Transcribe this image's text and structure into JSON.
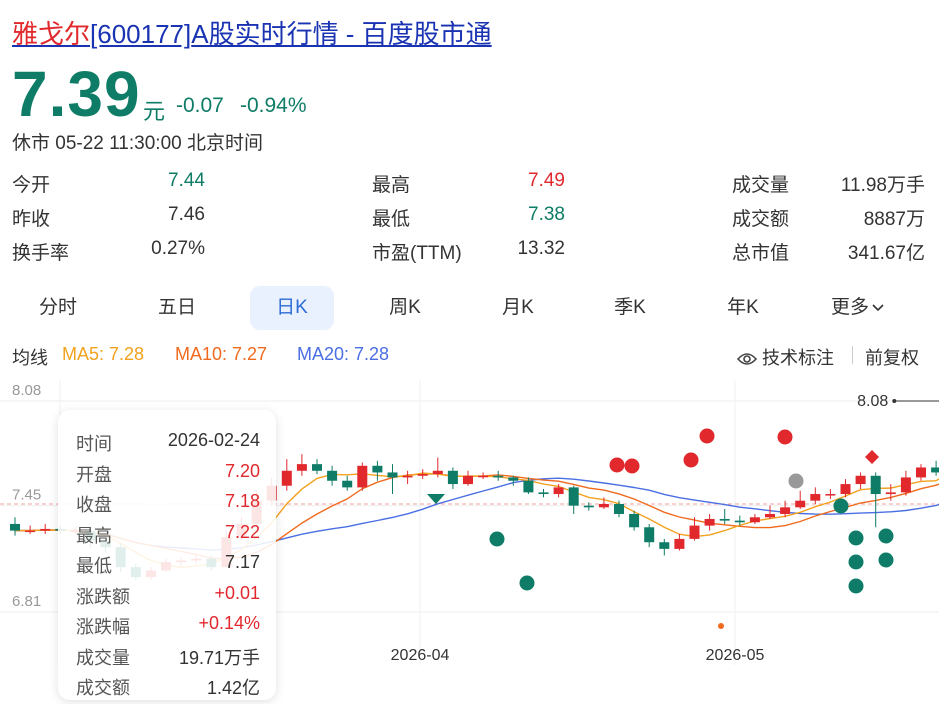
{
  "header": {
    "name": "雅戈尔",
    "code": "[600177]",
    "rest": "A股实时行情 - 百度股市通",
    "price": "7.39",
    "unit": "元",
    "change": "-0.07",
    "change_pct": "-0.94%",
    "status": "休市 05-22 11:30:00 北京时间"
  },
  "stats": [
    {
      "label": "今开",
      "value": "7.44",
      "color": "green"
    },
    {
      "label": "最高",
      "value": "7.49",
      "color": "red"
    },
    {
      "label": "成交量",
      "value": "11.98万手",
      "color": "dark"
    },
    {
      "label": "昨收",
      "value": "7.46",
      "color": "dark"
    },
    {
      "label": "最低",
      "value": "7.38",
      "color": "green"
    },
    {
      "label": "成交额",
      "value": "8887万",
      "color": "dark"
    },
    {
      "label": "换手率",
      "value": "0.27%",
      "color": "dark"
    },
    {
      "label": "市盈(TTM)",
      "value": "13.32",
      "color": "dark"
    },
    {
      "label": "总市值",
      "value": "341.67亿",
      "color": "dark"
    }
  ],
  "tabs": [
    "分时",
    "五日",
    "日K",
    "周K",
    "月K",
    "季K",
    "年K",
    "更多"
  ],
  "active_tab": "日K",
  "indicators": {
    "label": "均线",
    "ma5": "MA5: 7.28",
    "ma10": "MA10: 7.27",
    "ma20": "MA20: 7.28",
    "tech_label": "技术标注",
    "adjust_label": "前复权"
  },
  "colors": {
    "up": "#e0282d",
    "down": "#0e7c66",
    "ma5": "#f2a21e",
    "ma10": "#f06a1d",
    "ma20": "#4a6fe3",
    "accent": "#2d6bd6"
  },
  "chart": {
    "y_ticks": [
      "8.08",
      "7.45",
      "6.81"
    ],
    "x_ticks": [
      "2026-04",
      "2026-05"
    ],
    "max_label": "8.08"
  },
  "tooltip": [
    {
      "k": "时间",
      "v": "2026-02-24",
      "c": "dark"
    },
    {
      "k": "开盘",
      "v": "7.20",
      "c": "red"
    },
    {
      "k": "收盘",
      "v": "7.18",
      "c": "red"
    },
    {
      "k": "最高",
      "v": "7.22",
      "c": "red"
    },
    {
      "k": "最低",
      "v": "7.17",
      "c": "dark"
    },
    {
      "k": "涨跌额",
      "v": "+0.01",
      "c": "red"
    },
    {
      "k": "涨跌幅",
      "v": "+0.14%",
      "c": "red"
    },
    {
      "k": "成交量",
      "v": "19.71万手",
      "c": "dark"
    },
    {
      "k": "成交额",
      "v": "1.42亿",
      "c": "dark"
    }
  ],
  "chart_data": {
    "type": "candlestick",
    "y_axis_ticks": [
      8.08,
      7.45,
      6.81
    ],
    "reference_price": 7.46,
    "highlight_max": 8.08,
    "candles": [
      [
        7.34,
        7.3,
        7.38,
        7.27
      ],
      [
        7.3,
        7.3,
        7.33,
        7.28
      ],
      [
        7.3,
        7.31,
        7.34,
        7.28
      ],
      [
        7.31,
        7.3,
        7.33,
        7.28
      ],
      [
        7.3,
        7.3,
        7.32,
        7.28
      ],
      [
        7.3,
        7.24,
        7.31,
        7.2
      ],
      [
        7.24,
        7.2,
        7.26,
        7.17
      ],
      [
        7.2,
        7.08,
        7.22,
        7.05
      ],
      [
        7.08,
        7.02,
        7.1,
        7.0
      ],
      [
        7.02,
        7.06,
        7.08,
        7.0
      ],
      [
        7.06,
        7.11,
        7.13,
        7.05
      ],
      [
        7.11,
        7.12,
        7.14,
        7.09
      ],
      [
        7.12,
        7.13,
        7.15,
        7.1
      ],
      [
        7.13,
        7.08,
        7.15,
        7.06
      ],
      [
        7.08,
        7.26,
        7.3,
        7.08
      ],
      [
        7.26,
        7.34,
        7.38,
        7.24
      ],
      [
        7.34,
        7.48,
        7.54,
        7.33
      ],
      [
        7.48,
        7.57,
        7.62,
        7.45
      ],
      [
        7.57,
        7.66,
        7.73,
        7.54
      ],
      [
        7.66,
        7.7,
        7.76,
        7.63
      ],
      [
        7.7,
        7.66,
        7.73,
        7.64
      ],
      [
        7.66,
        7.6,
        7.69,
        7.57
      ],
      [
        7.6,
        7.56,
        7.63,
        7.54
      ],
      [
        7.56,
        7.69,
        7.71,
        7.54
      ],
      [
        7.69,
        7.65,
        7.72,
        7.6
      ],
      [
        7.65,
        7.62,
        7.7,
        7.52
      ],
      [
        7.62,
        7.63,
        7.66,
        7.58
      ],
      [
        7.63,
        7.64,
        7.67,
        7.61
      ],
      [
        7.64,
        7.66,
        7.74,
        7.62
      ],
      [
        7.66,
        7.58,
        7.68,
        7.55
      ],
      [
        7.58,
        7.63,
        7.66,
        7.57
      ],
      [
        7.63,
        7.63,
        7.65,
        7.61
      ],
      [
        7.63,
        7.62,
        7.66,
        7.6
      ],
      [
        7.62,
        7.6,
        7.63,
        7.57
      ],
      [
        7.6,
        7.53,
        7.62,
        7.52
      ],
      [
        7.53,
        7.52,
        7.55,
        7.5
      ],
      [
        7.52,
        7.56,
        7.58,
        7.5
      ],
      [
        7.56,
        7.45,
        7.57,
        7.4
      ],
      [
        7.45,
        7.44,
        7.47,
        7.42
      ],
      [
        7.44,
        7.46,
        7.5,
        7.43
      ],
      [
        7.46,
        7.4,
        7.48,
        7.38
      ],
      [
        7.4,
        7.32,
        7.42,
        7.3
      ],
      [
        7.32,
        7.23,
        7.34,
        7.2
      ],
      [
        7.23,
        7.19,
        7.25,
        7.15
      ],
      [
        7.19,
        7.25,
        7.28,
        7.18
      ],
      [
        7.25,
        7.33,
        7.38,
        7.24
      ],
      [
        7.33,
        7.37,
        7.4,
        7.3
      ],
      [
        7.37,
        7.36,
        7.43,
        7.34
      ],
      [
        7.36,
        7.35,
        7.39,
        7.33
      ],
      [
        7.35,
        7.38,
        7.4,
        7.34
      ],
      [
        7.38,
        7.4,
        7.45,
        7.37
      ],
      [
        7.4,
        7.44,
        7.48,
        7.38
      ],
      [
        7.44,
        7.48,
        7.54,
        7.43
      ],
      [
        7.48,
        7.52,
        7.56,
        7.46
      ],
      [
        7.52,
        7.52,
        7.55,
        7.49
      ],
      [
        7.52,
        7.58,
        7.61,
        7.5
      ],
      [
        7.58,
        7.63,
        7.65,
        7.55
      ],
      [
        7.63,
        7.52,
        7.65,
        7.32
      ],
      [
        7.52,
        7.53,
        7.58,
        7.48
      ],
      [
        7.53,
        7.62,
        7.66,
        7.51
      ],
      [
        7.62,
        7.68,
        7.7,
        7.6
      ],
      [
        7.68,
        7.65,
        7.72,
        7.63
      ],
      [
        7.65,
        7.79,
        7.84,
        7.63
      ],
      [
        7.79,
        7.89,
        8.08,
        7.76
      ],
      [
        7.89,
        7.83,
        7.92,
        7.8
      ],
      [
        7.83,
        7.79,
        7.86,
        7.77
      ],
      [
        7.79,
        7.77,
        7.81,
        7.74
      ],
      [
        7.77,
        7.74,
        7.8,
        7.7
      ],
      [
        7.74,
        7.72,
        7.77,
        7.68
      ],
      [
        7.72,
        7.67,
        7.75,
        7.65
      ],
      [
        7.67,
        7.56,
        7.7,
        7.53
      ],
      [
        7.56,
        7.6,
        7.65,
        7.55
      ],
      [
        7.6,
        7.56,
        7.62,
        7.53
      ],
      [
        7.56,
        7.55,
        7.58,
        7.5
      ],
      [
        7.55,
        7.52,
        7.56,
        7.5
      ],
      [
        7.52,
        7.48,
        7.54,
        7.45
      ]
    ],
    "ma_values": {
      "MA5": 7.28,
      "MA10": 7.27,
      "MA20": 7.28
    }
  }
}
